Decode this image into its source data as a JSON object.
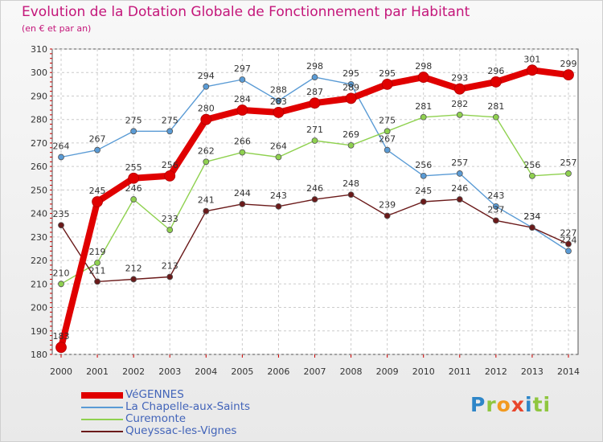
{
  "header": {
    "title": "Evolution de la Dotation Globale de Fonctionnement par Habitant",
    "subtitle": "(en € et par an)"
  },
  "brand": {
    "logo_text": "Proxiti",
    "letters": [
      "P",
      "r",
      "o",
      "x",
      "i",
      "ti"
    ]
  },
  "chart_data": {
    "type": "line",
    "title": "Evolution de la Dotation Globale de Fonctionnement par Habitant",
    "subtitle": "(en € et par an)",
    "xlabel": "",
    "ylabel": "",
    "x": [
      2000,
      2001,
      2002,
      2003,
      2004,
      2005,
      2006,
      2007,
      2008,
      2009,
      2010,
      2011,
      2012,
      2013,
      2014
    ],
    "ylim": [
      180,
      310
    ],
    "yticks": [
      180,
      190,
      200,
      210,
      220,
      230,
      240,
      250,
      260,
      270,
      280,
      290,
      300,
      310
    ],
    "grid": true,
    "legend_position": "bottom-left",
    "series": [
      {
        "name": "VéGENNES",
        "color": "#e00000",
        "emphasis": true,
        "values": [
          183,
          245,
          255,
          256,
          280,
          284,
          283,
          287,
          289,
          295,
          298,
          293,
          296,
          301,
          299
        ]
      },
      {
        "name": "La Chapelle-aux-Saints",
        "color": "#5a9bd5",
        "emphasis": false,
        "values": [
          264,
          267,
          275,
          275,
          294,
          297,
          288,
          298,
          295,
          267,
          256,
          257,
          243,
          234,
          224
        ]
      },
      {
        "name": "Curemonte",
        "color": "#8fd14f",
        "emphasis": false,
        "values": [
          210,
          219,
          246,
          233,
          262,
          266,
          264,
          271,
          269,
          275,
          281,
          282,
          281,
          256,
          257
        ]
      },
      {
        "name": "Queyssac-les-Vignes",
        "color": "#6b1a1a",
        "emphasis": false,
        "values": [
          235,
          211,
          212,
          213,
          241,
          244,
          243,
          246,
          248,
          239,
          245,
          246,
          237,
          234,
          227
        ]
      }
    ]
  }
}
